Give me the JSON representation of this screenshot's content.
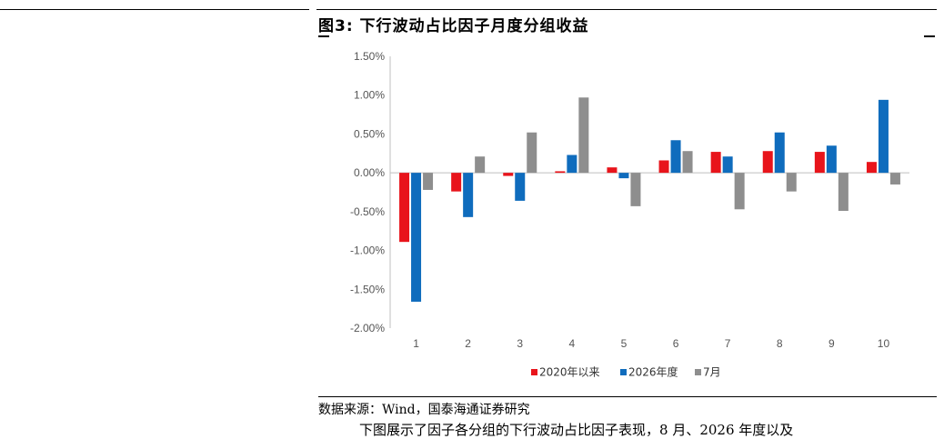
{
  "figure": {
    "title": "图3:  下行波动占比因子月度分组收益",
    "source": "数据来源：Wind，国泰海通证券研究",
    "body_text": "下图展示了因子各分组的下行波动占比因子表现，8 月、2026 年度以及"
  },
  "chart_data": {
    "type": "bar",
    "title": "",
    "xlabel": "",
    "ylabel": "",
    "categories": [
      "1",
      "2",
      "3",
      "4",
      "5",
      "6",
      "7",
      "8",
      "9",
      "10"
    ],
    "ylim": [
      -0.02,
      0.015
    ],
    "yticks": [
      0.015,
      0.01,
      0.005,
      0.0,
      -0.005,
      -0.01,
      -0.015,
      -0.02
    ],
    "ytick_labels": [
      "1.50%",
      "1.00%",
      "0.50%",
      "0.00%",
      "-0.50%",
      "-1.00%",
      "-1.50%",
      "-2.00%"
    ],
    "grid": false,
    "legend_position": "bottom",
    "series": [
      {
        "name": "2020年以来",
        "color": "#e8141b",
        "values": [
          -0.0089,
          -0.0024,
          -0.0004,
          0.0002,
          0.0007,
          0.0016,
          0.0027,
          0.0028,
          0.0027,
          0.0014
        ]
      },
      {
        "name": "2026年度",
        "color": "#0f6cbd",
        "values": [
          -0.0166,
          -0.0057,
          -0.0036,
          0.0023,
          -0.0007,
          0.0042,
          0.0021,
          0.0052,
          0.0035,
          0.0094
        ]
      },
      {
        "name": "7月",
        "color": "#8e8e8e",
        "values": [
          -0.0022,
          0.0021,
          0.0052,
          0.0097,
          -0.0043,
          0.0028,
          -0.0047,
          -0.0024,
          -0.0049,
          -0.0015
        ]
      }
    ]
  }
}
